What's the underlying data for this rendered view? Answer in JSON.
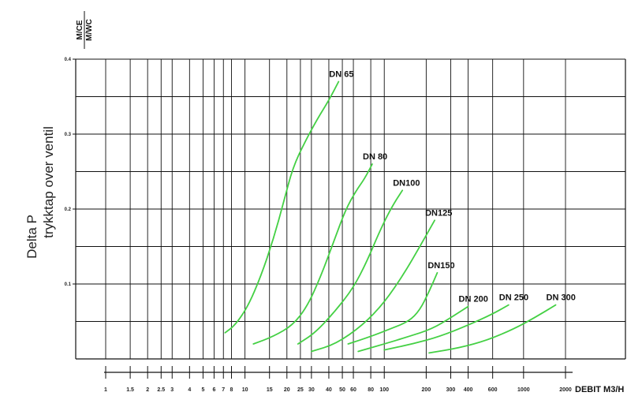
{
  "chart_data": {
    "type": "line",
    "title": "",
    "xlabel": "DEBIT  M3/H",
    "ylabel_line1": "Delta P",
    "ylabel_line2": "trykktap over ventil",
    "y_units": [
      "M/CE",
      "M/WC"
    ],
    "x_scale": "log",
    "xlim": [
      1,
      2000
    ],
    "ylim": [
      0,
      0.4
    ],
    "grid": true,
    "x_ticks": [
      "1",
      "1.5",
      "2",
      "2.5",
      "3",
      "4",
      "5",
      "6",
      "7",
      "8",
      "10",
      "15",
      "20",
      "25",
      "30",
      "40",
      "50",
      "60",
      "80",
      "100",
      "200",
      "300",
      "400",
      "600",
      "1000",
      "2000"
    ],
    "x_tick_values": [
      1,
      1.5,
      2,
      2.5,
      3,
      4,
      5,
      6,
      7,
      8,
      10,
      15,
      20,
      25,
      30,
      40,
      50,
      60,
      80,
      100,
      200,
      300,
      400,
      600,
      1000,
      2000
    ],
    "y_ticks": [
      "0.1",
      "0.2",
      "0.3",
      "0.4"
    ],
    "y_tick_values": [
      0.1,
      0.2,
      0.3,
      0.4
    ],
    "line_color": "#44d044",
    "series": [
      {
        "name": "DN 65",
        "points": [
          [
            7.2,
            0.035
          ],
          [
            8.5,
            0.045
          ],
          [
            10.5,
            0.07
          ],
          [
            13,
            0.11
          ],
          [
            16,
            0.16
          ],
          [
            19,
            0.21
          ],
          [
            22,
            0.255
          ],
          [
            27,
            0.29
          ],
          [
            33,
            0.32
          ],
          [
            40,
            0.345
          ],
          [
            47,
            0.37
          ]
        ]
      },
      {
        "name": "DN 80",
        "points": [
          [
            11.5,
            0.02
          ],
          [
            16,
            0.03
          ],
          [
            22,
            0.045
          ],
          [
            28,
            0.07
          ],
          [
            35,
            0.11
          ],
          [
            44,
            0.16
          ],
          [
            53,
            0.2
          ],
          [
            63,
            0.225
          ],
          [
            72,
            0.24
          ],
          [
            82,
            0.26
          ]
        ]
      },
      {
        "name": "DN100",
        "points": [
          [
            24,
            0.02
          ],
          [
            32,
            0.035
          ],
          [
            45,
            0.065
          ],
          [
            60,
            0.095
          ],
          [
            75,
            0.13
          ],
          [
            95,
            0.175
          ],
          [
            115,
            0.205
          ],
          [
            135,
            0.225
          ]
        ]
      },
      {
        "name": "DN125",
        "points": [
          [
            30,
            0.01
          ],
          [
            45,
            0.02
          ],
          [
            70,
            0.045
          ],
          [
            100,
            0.075
          ],
          [
            140,
            0.115
          ],
          [
            180,
            0.15
          ],
          [
            230,
            0.185
          ]
        ]
      },
      {
        "name": "DN150",
        "points": [
          [
            55,
            0.02
          ],
          [
            80,
            0.03
          ],
          [
            110,
            0.04
          ],
          [
            150,
            0.05
          ],
          [
            180,
            0.065
          ],
          [
            210,
            0.09
          ],
          [
            240,
            0.115
          ]
        ]
      },
      {
        "name": "DN 200",
        "points": [
          [
            65,
            0.01
          ],
          [
            100,
            0.02
          ],
          [
            150,
            0.03
          ],
          [
            220,
            0.04
          ],
          [
            300,
            0.055
          ],
          [
            400,
            0.07
          ]
        ]
      },
      {
        "name": "DN 250",
        "points": [
          [
            100,
            0.012
          ],
          [
            160,
            0.02
          ],
          [
            250,
            0.03
          ],
          [
            400,
            0.045
          ],
          [
            600,
            0.06
          ],
          [
            780,
            0.072
          ]
        ]
      },
      {
        "name": "DN 300",
        "points": [
          [
            210,
            0.008
          ],
          [
            350,
            0.015
          ],
          [
            550,
            0.025
          ],
          [
            850,
            0.04
          ],
          [
            1200,
            0.055
          ],
          [
            1700,
            0.072
          ]
        ]
      }
    ]
  }
}
